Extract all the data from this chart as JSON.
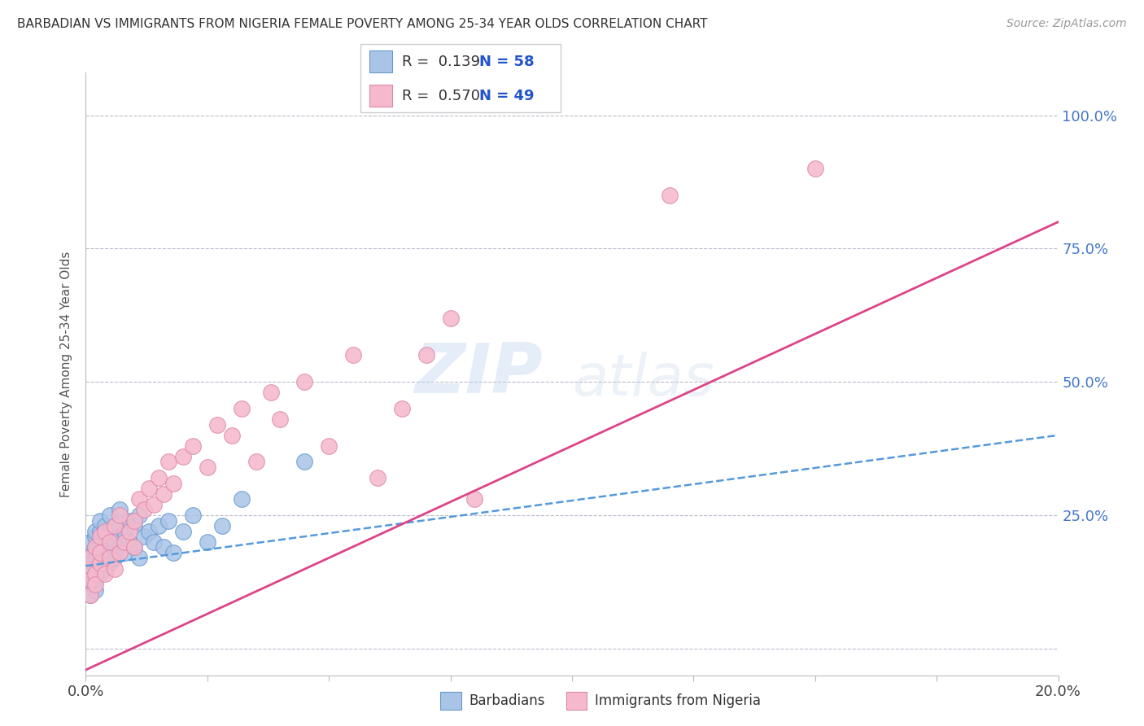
{
  "title": "BARBADIAN VS IMMIGRANTS FROM NIGERIA FEMALE POVERTY AMONG 25-34 YEAR OLDS CORRELATION CHART",
  "source": "Source: ZipAtlas.com",
  "ylabel": "Female Poverty Among 25-34 Year Olds",
  "xlim": [
    0.0,
    0.2
  ],
  "ylim": [
    -0.05,
    1.08
  ],
  "barbadian_color": "#aac4e8",
  "nigeria_color": "#f5b8cc",
  "barbadian_edge": "#6699cc",
  "nigeria_edge": "#dd88aa",
  "trend_blue": "#5599dd",
  "trend_pink": "#dd4488",
  "legend_R1": "R =  0.139",
  "legend_N1": "N = 58",
  "legend_R2": "R =  0.570",
  "legend_N2": "N = 49",
  "watermark_zip": "ZIP",
  "watermark_atlas": "atlas",
  "barbadians_x": [
    0.0005,
    0.0005,
    0.001,
    0.001,
    0.001,
    0.001,
    0.001,
    0.001,
    0.002,
    0.002,
    0.002,
    0.002,
    0.002,
    0.002,
    0.002,
    0.003,
    0.003,
    0.003,
    0.003,
    0.003,
    0.003,
    0.003,
    0.004,
    0.004,
    0.004,
    0.004,
    0.004,
    0.005,
    0.005,
    0.005,
    0.005,
    0.006,
    0.006,
    0.006,
    0.007,
    0.007,
    0.007,
    0.008,
    0.008,
    0.009,
    0.009,
    0.01,
    0.01,
    0.011,
    0.011,
    0.012,
    0.013,
    0.014,
    0.015,
    0.016,
    0.017,
    0.018,
    0.02,
    0.022,
    0.025,
    0.028,
    0.032,
    0.045
  ],
  "barbadians_y": [
    0.17,
    0.14,
    0.18,
    0.16,
    0.2,
    0.14,
    0.12,
    0.1,
    0.19,
    0.17,
    0.21,
    0.15,
    0.13,
    0.22,
    0.11,
    0.2,
    0.18,
    0.22,
    0.16,
    0.24,
    0.19,
    0.14,
    0.21,
    0.17,
    0.15,
    0.23,
    0.19,
    0.18,
    0.22,
    0.25,
    0.16,
    0.2,
    0.17,
    0.23,
    0.21,
    0.19,
    0.26,
    0.18,
    0.22,
    0.2,
    0.24,
    0.19,
    0.23,
    0.17,
    0.25,
    0.21,
    0.22,
    0.2,
    0.23,
    0.19,
    0.24,
    0.18,
    0.22,
    0.25,
    0.2,
    0.23,
    0.28,
    0.35
  ],
  "nigeria_x": [
    0.0005,
    0.001,
    0.001,
    0.001,
    0.002,
    0.002,
    0.002,
    0.003,
    0.003,
    0.003,
    0.004,
    0.004,
    0.005,
    0.005,
    0.006,
    0.006,
    0.007,
    0.007,
    0.008,
    0.009,
    0.01,
    0.01,
    0.011,
    0.012,
    0.013,
    0.014,
    0.015,
    0.016,
    0.017,
    0.018,
    0.02,
    0.022,
    0.025,
    0.027,
    0.03,
    0.032,
    0.035,
    0.038,
    0.04,
    0.045,
    0.05,
    0.055,
    0.06,
    0.065,
    0.07,
    0.075,
    0.08,
    0.12,
    0.15
  ],
  "nigeria_y": [
    0.15,
    0.1,
    0.17,
    0.13,
    0.14,
    0.19,
    0.12,
    0.16,
    0.21,
    0.18,
    0.14,
    0.22,
    0.17,
    0.2,
    0.15,
    0.23,
    0.18,
    0.25,
    0.2,
    0.22,
    0.24,
    0.19,
    0.28,
    0.26,
    0.3,
    0.27,
    0.32,
    0.29,
    0.35,
    0.31,
    0.36,
    0.38,
    0.34,
    0.42,
    0.4,
    0.45,
    0.35,
    0.48,
    0.43,
    0.5,
    0.38,
    0.55,
    0.32,
    0.45,
    0.55,
    0.62,
    0.28,
    0.85,
    0.9
  ],
  "blue_trend_x0": 0.0,
  "blue_trend_y0": 0.155,
  "blue_trend_x1": 0.2,
  "blue_trend_y1": 0.4,
  "pink_trend_x0": 0.0,
  "pink_trend_y0": -0.04,
  "pink_trend_x1": 0.2,
  "pink_trend_y1": 0.8
}
